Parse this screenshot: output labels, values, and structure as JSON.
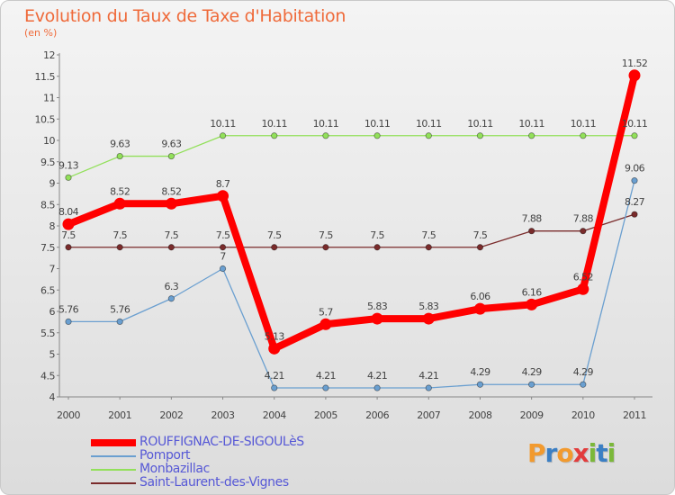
{
  "title": "Evolution du Taux de Taxe d'Habitation",
  "subtitle": "(en %)",
  "brand": {
    "letters": [
      "P",
      "r",
      "o",
      "x",
      "i",
      "t",
      "i"
    ],
    "colors": [
      "#f29a2e",
      "#3b7fc4",
      "#f29a2e",
      "#e23c3c",
      "#7bb83a",
      "#3b7fc4",
      "#7bb83a"
    ]
  },
  "chart_data": {
    "type": "line",
    "x": [
      "2000",
      "2001",
      "2002",
      "2003",
      "2004",
      "2005",
      "2006",
      "2007",
      "2008",
      "2009",
      "2010",
      "2011"
    ],
    "ylim": [
      4,
      12
    ],
    "yticks": [
      "4",
      "4.5",
      "5",
      "5.5",
      "6",
      "6.5",
      "7",
      "7.5",
      "8",
      "8.5",
      "9",
      "9.5",
      "10",
      "10.5",
      "11",
      "11.5",
      "12"
    ],
    "grid": false,
    "legend": "bottom-left",
    "series": [
      {
        "name": "ROUFFIGNAC-DE-SIGOULèS",
        "color": "#ff0000",
        "values": [
          8.04,
          8.52,
          8.52,
          8.7,
          5.13,
          5.7,
          5.83,
          5.83,
          6.06,
          6.16,
          6.52,
          11.52
        ],
        "labels": [
          "8.04",
          "8.52",
          "8.52",
          "8.7",
          "5.13",
          "5.7",
          "5.83",
          "5.83",
          "6.06",
          "6.16",
          "6.52",
          "11.52"
        ]
      },
      {
        "name": "Pomport",
        "color": "#6a9fd0",
        "values": [
          5.76,
          5.76,
          6.3,
          7,
          4.21,
          4.21,
          4.21,
          4.21,
          4.29,
          4.29,
          4.29,
          9.06
        ],
        "labels": [
          "5.76",
          "5.76",
          "6.3",
          "7",
          "4.21",
          "4.21",
          "4.21",
          "4.21",
          "4.29",
          "4.29",
          "4.29",
          "9.06"
        ]
      },
      {
        "name": "Monbazillac",
        "color": "#92e05a",
        "values": [
          9.13,
          9.63,
          9.63,
          10.11,
          10.11,
          10.11,
          10.11,
          10.11,
          10.11,
          10.11,
          10.11,
          10.11
        ],
        "labels": [
          "9.13",
          "9.63",
          "9.63",
          "10.11",
          "10.11",
          "10.11",
          "10.11",
          "10.11",
          "10.11",
          "10.11",
          "10.11",
          "10.11"
        ]
      },
      {
        "name": "Saint-Laurent-des-Vignes",
        "color": "#7a2b2b",
        "values": [
          7.5,
          7.5,
          7.5,
          7.5,
          7.5,
          7.5,
          7.5,
          7.5,
          7.5,
          7.88,
          7.88,
          8.27
        ],
        "labels": [
          "7.5",
          "7.5",
          "7.5",
          "7.5",
          "7.5",
          "7.5",
          "7.5",
          "7.5",
          "7.5",
          "7.88",
          "7.88",
          "8.27"
        ]
      }
    ]
  }
}
